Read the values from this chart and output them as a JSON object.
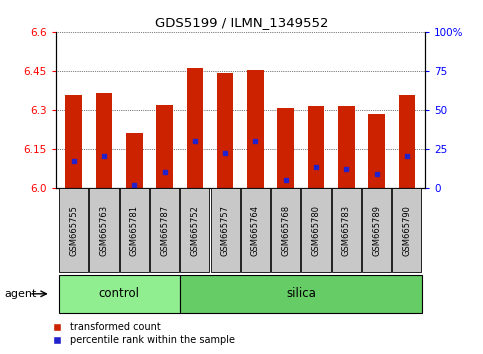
{
  "title": "GDS5199 / ILMN_1349552",
  "samples": [
    "GSM665755",
    "GSM665763",
    "GSM665781",
    "GSM665787",
    "GSM665752",
    "GSM665757",
    "GSM665764",
    "GSM665768",
    "GSM665780",
    "GSM665783",
    "GSM665789",
    "GSM665790"
  ],
  "groups": [
    "control",
    "control",
    "control",
    "control",
    "silica",
    "silica",
    "silica",
    "silica",
    "silica",
    "silica",
    "silica",
    "silica"
  ],
  "red_values": [
    6.355,
    6.365,
    6.21,
    6.32,
    6.46,
    6.44,
    6.455,
    6.305,
    6.315,
    6.315,
    6.285,
    6.355
  ],
  "blue_percentiles": [
    17,
    20,
    2,
    10,
    30,
    22,
    30,
    5,
    13,
    12,
    9,
    20
  ],
  "ymin": 6.0,
  "ymax": 6.6,
  "yticks_left": [
    6.0,
    6.15,
    6.3,
    6.45,
    6.6
  ],
  "yticks_right_vals": [
    0,
    25,
    50,
    75,
    100
  ],
  "yticks_right_labels": [
    "0",
    "25",
    "50",
    "75",
    "100%"
  ],
  "bar_color": "#cc2200",
  "dot_color": "#2222cc",
  "control_color": "#90ee90",
  "silica_color": "#66cc66",
  "tick_bg_color": "#c8c8c8",
  "legend_red": "transformed count",
  "legend_blue": "percentile rank within the sample",
  "agent_label": "agent",
  "group_labels": [
    "control",
    "silica"
  ],
  "bar_width": 0.55
}
